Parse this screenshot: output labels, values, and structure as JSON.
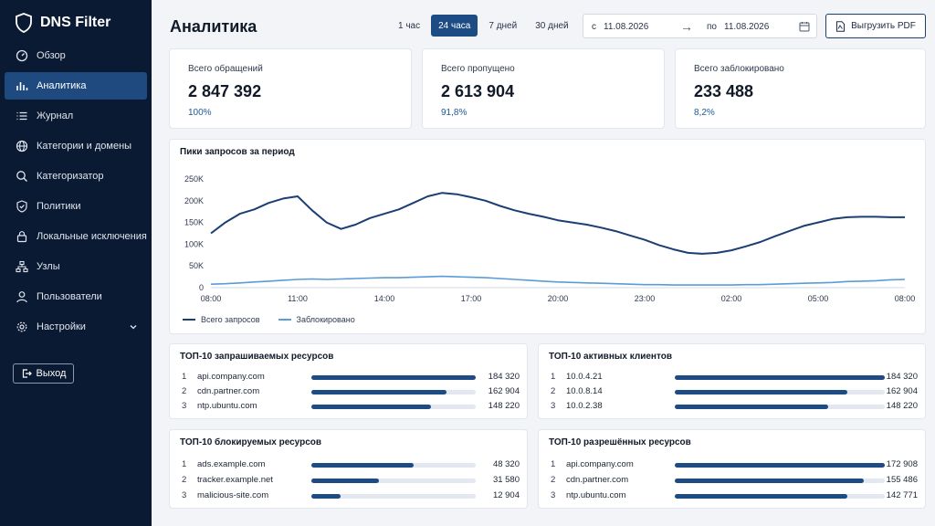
{
  "sidebar": {
    "brand": "DNS Filter",
    "items": [
      {
        "label": "Обзор",
        "icon": "gauge-icon"
      },
      {
        "label": "Аналитика",
        "icon": "bar-chart-icon",
        "active": true
      },
      {
        "label": "Журнал",
        "icon": "list-icon"
      },
      {
        "label": "Категории и домены",
        "icon": "globe-icon"
      },
      {
        "label": "Категоризатор",
        "icon": "search-icon"
      },
      {
        "label": "Политики",
        "icon": "shield-check-icon"
      },
      {
        "label": "Локальные исключения",
        "icon": "lock-icon"
      },
      {
        "label": "Узлы",
        "icon": "nodes-icon"
      },
      {
        "label": "Пользователи",
        "icon": "user-icon"
      },
      {
        "label": "Настройки",
        "icon": "gear-icon"
      }
    ],
    "logout": "Выход"
  },
  "header": {
    "title": "Аналитика",
    "ranges": [
      "1 час",
      "24 часа",
      "7 дней",
      "30 дней"
    ],
    "active_range": "24 часа",
    "date_from_label": "с",
    "date_from": "11.08.2026",
    "date_arrow": "→",
    "date_to_label": "по",
    "date_to": "11.08.2026",
    "export_label": "Выгрузить PDF"
  },
  "stats": [
    {
      "label": "Всего обращений",
      "value": "2 847 392",
      "pct": "100%"
    },
    {
      "label": "Всего пропущено",
      "value": "2 613 904",
      "pct": "91,8%"
    },
    {
      "label": "Всего заблокировано",
      "value": "233 488",
      "pct": "8,2%"
    }
  ],
  "chart": {
    "title": "Пики запросов за период"
  },
  "chart_data": {
    "type": "line",
    "x": [
      "08:00",
      "08:30",
      "09:00",
      "09:30",
      "10:00",
      "10:30",
      "11:00",
      "11:30",
      "12:00",
      "12:30",
      "13:00",
      "13:30",
      "14:00",
      "14:30",
      "15:00",
      "15:30",
      "16:00",
      "16:30",
      "17:00",
      "17:30",
      "18:00",
      "18:30",
      "19:00",
      "19:30",
      "20:00",
      "20:30",
      "21:00",
      "21:30",
      "22:00",
      "22:30",
      "23:00",
      "23:30",
      "00:00",
      "00:30",
      "01:00",
      "01:30",
      "02:00",
      "02:30",
      "03:00",
      "03:30",
      "04:00",
      "04:30",
      "05:00",
      "05:30",
      "06:00",
      "06:30",
      "07:00",
      "07:30",
      "08:00"
    ],
    "xticks": [
      "08:00",
      "11:00",
      "14:00",
      "17:00",
      "20:00",
      "23:00",
      "02:00",
      "05:00",
      "08:00"
    ],
    "yticks": [
      "0",
      "50K",
      "100K",
      "150K",
      "200K",
      "250K"
    ],
    "ylim": [
      0,
      250000
    ],
    "series": [
      {
        "name": "Всего запросов",
        "color": "#1b3f72",
        "values": [
          125000,
          150000,
          170000,
          180000,
          195000,
          205000,
          210000,
          178000,
          150000,
          135000,
          145000,
          160000,
          170000,
          180000,
          195000,
          210000,
          218000,
          215000,
          208000,
          200000,
          188000,
          178000,
          170000,
          163000,
          155000,
          150000,
          145000,
          138000,
          130000,
          120000,
          110000,
          98000,
          88000,
          80000,
          78000,
          80000,
          86000,
          95000,
          105000,
          118000,
          130000,
          142000,
          150000,
          158000,
          162000,
          163000,
          163000,
          162000,
          162000
        ]
      },
      {
        "name": "Заблокировано",
        "color": "#5b9bd8",
        "values": [
          8000,
          9000,
          11000,
          13000,
          15000,
          17000,
          19000,
          20000,
          19000,
          20000,
          21000,
          22000,
          23000,
          23000,
          24000,
          25000,
          26000,
          25000,
          24000,
          23000,
          21000,
          19000,
          17000,
          15000,
          13000,
          12000,
          11000,
          10000,
          9000,
          8000,
          7000,
          7000,
          6000,
          6000,
          6000,
          6000,
          6000,
          7000,
          7000,
          8000,
          9000,
          10000,
          11000,
          12000,
          14000,
          15000,
          16000,
          18000,
          19000
        ]
      }
    ],
    "legend_position": "bottom-left",
    "grid": false
  },
  "tops": [
    {
      "title": "ТОП-10 запрашиваемых ресурсов",
      "rows": [
        {
          "rank": "1",
          "name": "api.company.com",
          "value": "184 320",
          "fill": 1.0
        },
        {
          "rank": "2",
          "name": "cdn.partner.com",
          "value": "162 904",
          "fill": 0.82
        },
        {
          "rank": "3",
          "name": "ntp.ubuntu.com",
          "value": "148 220",
          "fill": 0.73
        }
      ]
    },
    {
      "title": "ТОП-10 активных клиентов",
      "rows": [
        {
          "rank": "1",
          "name": "10.0.4.21",
          "value": "184 320",
          "fill": 1.0
        },
        {
          "rank": "2",
          "name": "10.0.8.14",
          "value": "162 904",
          "fill": 0.82
        },
        {
          "rank": "3",
          "name": "10.0.2.38",
          "value": "148 220",
          "fill": 0.73
        }
      ]
    },
    {
      "title": "ТОП-10 блокируемых ресурсов",
      "rows": [
        {
          "rank": "1",
          "name": "ads.example.com",
          "value": "48 320",
          "fill": 0.62
        },
        {
          "rank": "2",
          "name": "tracker.example.net",
          "value": "31 580",
          "fill": 0.41
        },
        {
          "rank": "3",
          "name": "malicious-site.com",
          "value": "12 904",
          "fill": 0.18
        }
      ]
    },
    {
      "title": "ТОП-10 разрешённых ресурсов",
      "rows": [
        {
          "rank": "1",
          "name": "api.company.com",
          "value": "172 908",
          "fill": 1.0
        },
        {
          "rank": "2",
          "name": "cdn.partner.com",
          "value": "155 486",
          "fill": 0.9
        },
        {
          "rank": "3",
          "name": "ntp.ubuntu.com",
          "value": "142 771",
          "fill": 0.82
        }
      ]
    }
  ]
}
